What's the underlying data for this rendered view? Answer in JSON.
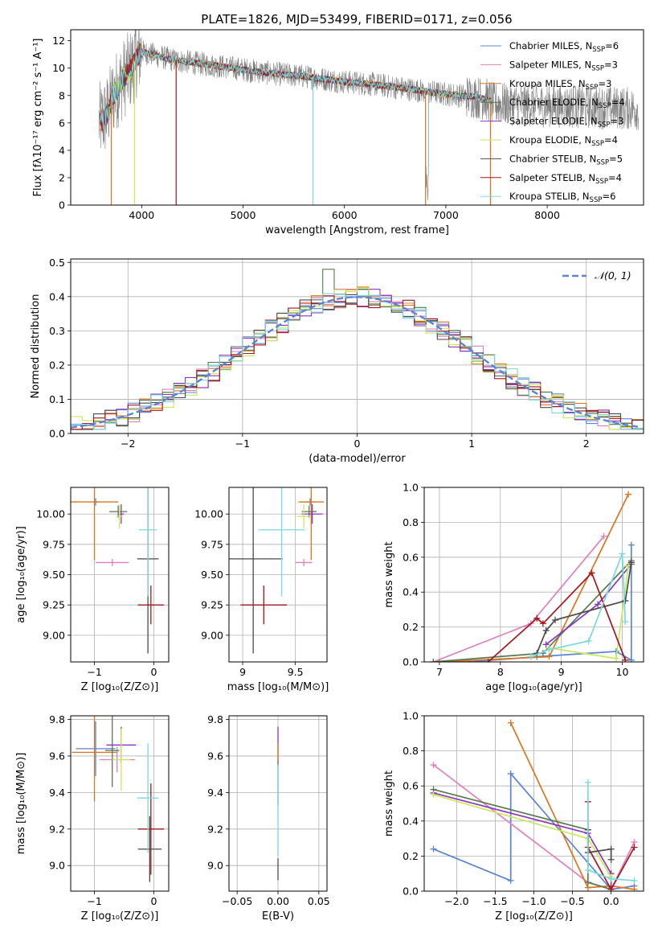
{
  "figure": {
    "title": "PLATE=1826, MJD=53499, FIBERID=0171, z=0.056"
  },
  "palette": {
    "Chabrier MILES": "#5b84d4",
    "Salpeter MILES": "#e07fbe",
    "Kroupa MILES": "#e0731e",
    "Chabrier ELODIE": "#567a4e",
    "Salpeter ELODIE": "#8d34c0",
    "Kroupa ELODIE": "#c9e95a",
    "Chabrier STELIB": "#4a4a4a",
    "Salpeter STELIB": "#a8151b",
    "Kroupa STELIB": "#7ad9de",
    "data": "#808080",
    "normal": "#5b84d4"
  },
  "chart_data": [
    {
      "id": "spectrum",
      "type": "line",
      "xlabel": "wavelength [Angstrom, rest frame]",
      "ylabel": "Flux [fλ10⁻¹⁷ erg cm⁻² s⁻¹ A⁻¹]",
      "xlim": [
        3300,
        8950
      ],
      "ylim": [
        0,
        12.8
      ],
      "xticks": [
        4000,
        5000,
        6000,
        7000,
        8000
      ],
      "yticks": [
        0,
        2,
        4,
        6,
        8,
        10,
        12
      ],
      "grid": false,
      "legend_position": "top-right",
      "legend": [
        "Chabrier MILES, N_SSP=6",
        "Salpeter MILES, N_SSP=3",
        "Kroupa MILES, N_SSP=3",
        "Chabrier ELODIE, N_SSP=4",
        "Salpeter ELODIE, N_SSP=3",
        "Kroupa ELODIE, N_SSP=4",
        "Chabrier STELIB, N_SSP=5",
        "Salpeter STELIB, N_SSP=4",
        "Kroupa STELIB, N_SSP=6"
      ],
      "continuum": {
        "x": [
          3580,
          3650,
          3720,
          3800,
          3900,
          3950,
          4000,
          4100,
          4300,
          4500,
          4800,
          5000,
          5300,
          5600,
          6000,
          6300,
          6600,
          7000,
          7300,
          7450
        ],
        "y": [
          6.0,
          6.5,
          8.0,
          9.0,
          10.0,
          10.8,
          11.2,
          11.0,
          10.6,
          10.4,
          10.1,
          9.9,
          9.6,
          9.4,
          9.0,
          8.8,
          8.5,
          8.1,
          7.9,
          7.6
        ]
      }
    },
    {
      "id": "residuals",
      "type": "bar",
      "xlabel": "(data-model)/error",
      "ylabel": "Normed distribution",
      "xlim": [
        -2.5,
        2.5
      ],
      "ylim": [
        0,
        0.51
      ],
      "xticks": [
        -2,
        -1,
        0,
        1,
        2
      ],
      "yticks": [
        0.0,
        0.1,
        0.2,
        0.3,
        0.4,
        0.5
      ],
      "grid": true,
      "legend_position": "top-right",
      "legend": [
        "𝒩(0, 1)"
      ],
      "bin_width": 0.1,
      "peak_values": {
        "x": -0.2,
        "y": 0.48
      }
    },
    {
      "id": "age-vs-Z",
      "type": "scatter",
      "xlabel": "Z [log₁₀(Z/Z⊙)]",
      "ylabel": "age  [log₁₀(age/yr)]",
      "xlim": [
        -1.4,
        0.25
      ],
      "ylim": [
        8.78,
        10.22
      ],
      "xticks": [
        -1,
        0
      ],
      "yticks": [
        9.0,
        9.25,
        9.5,
        9.75,
        10.0
      ],
      "ytick_labels": [
        "9.00",
        "9.25",
        "9.50",
        "9.75",
        "10.00"
      ],
      "grid": true,
      "points": [
        {
          "model": "Chabrier MILES",
          "x": -0.98,
          "y": 10.1,
          "xerr": 0.05,
          "yerr": 0.03
        },
        {
          "model": "Salpeter MILES",
          "x": -0.7,
          "y": 9.6,
          "xerr": 0.28,
          "yerr": 0.03
        },
        {
          "model": "Kroupa MILES",
          "x": -1.0,
          "y": 10.1,
          "xerr": 0.4,
          "yerr": 0.48
        },
        {
          "model": "Chabrier ELODIE",
          "x": -0.6,
          "y": 10.02,
          "xerr": 0.15,
          "yerr": 0.05
        },
        {
          "model": "Salpeter ELODIE",
          "x": -0.55,
          "y": 10.0,
          "xerr": 0.05,
          "yerr": 0.08
        },
        {
          "model": "Kroupa ELODIE",
          "x": -0.58,
          "y": 9.98,
          "xerr": 0.06,
          "yerr": 0.1
        },
        {
          "model": "Chabrier STELIB",
          "x": -0.1,
          "y": 9.63,
          "xerr": 0.18,
          "yerr": 0.78
        },
        {
          "model": "Salpeter STELIB",
          "x": -0.05,
          "y": 9.25,
          "xerr": 0.22,
          "yerr": 0.16
        },
        {
          "model": "Kroupa STELIB",
          "x": -0.1,
          "y": 9.87,
          "xerr": 0.15,
          "yerr": 0.55
        }
      ]
    },
    {
      "id": "age-vs-mass",
      "type": "scatter",
      "xlabel": "mass [log₁₀(M/M⊙)]",
      "ylabel": "",
      "xlim": [
        8.87,
        9.8
      ],
      "ylim": [
        8.78,
        10.22
      ],
      "xticks": [
        9.0,
        9.5
      ],
      "yticks": [
        9.0,
        9.25,
        9.5,
        9.75,
        10.0
      ],
      "ytick_labels": [
        "9.00",
        "9.25",
        "9.50",
        "9.75",
        "10.00"
      ],
      "grid": true,
      "points": [
        {
          "model": "Chabrier MILES",
          "x": 9.64,
          "y": 10.1,
          "xerr": 0.05,
          "yerr": 0.03
        },
        {
          "model": "Salpeter MILES",
          "x": 9.58,
          "y": 9.6,
          "xerr": 0.08,
          "yerr": 0.03
        },
        {
          "model": "Kroupa MILES",
          "x": 9.65,
          "y": 10.1,
          "xerr": 0.12,
          "yerr": 0.48
        },
        {
          "model": "Chabrier ELODIE",
          "x": 9.63,
          "y": 10.02,
          "xerr": 0.07,
          "yerr": 0.05
        },
        {
          "model": "Salpeter ELODIE",
          "x": 9.66,
          "y": 10.0,
          "xerr": 0.1,
          "yerr": 0.08
        },
        {
          "model": "Kroupa ELODIE",
          "x": 9.58,
          "y": 9.98,
          "xerr": 0.06,
          "yerr": 0.1
        },
        {
          "model": "Chabrier STELIB",
          "x": 9.1,
          "y": 9.63,
          "xerr": 0.28,
          "yerr": 0.78
        },
        {
          "model": "Salpeter STELIB",
          "x": 9.2,
          "y": 9.25,
          "xerr": 0.22,
          "yerr": 0.16
        },
        {
          "model": "Kroupa STELIB",
          "x": 9.37,
          "y": 9.87,
          "xerr": 0.22,
          "yerr": 0.55
        }
      ]
    },
    {
      "id": "weight-vs-age",
      "type": "line",
      "xlabel": "age  [log₁₀(age/yr)]",
      "ylabel": "mass weight",
      "xlim": [
        6.75,
        10.35
      ],
      "ylim": [
        0,
        1
      ],
      "xticks": [
        7,
        8,
        9,
        10
      ],
      "yticks": [
        0.0,
        0.2,
        0.4,
        0.6,
        0.8,
        1.0
      ],
      "grid": true,
      "series": [
        {
          "name": "Chabrier MILES",
          "x": [
            6.9,
            7.5,
            8.6,
            9.9,
            10.15,
            10.15
          ],
          "y": [
            0.0,
            0.0,
            0.03,
            0.06,
            0.01,
            0.67
          ]
        },
        {
          "name": "Salpeter MILES",
          "x": [
            6.9,
            8.5,
            9.7
          ],
          "y": [
            0.0,
            0.22,
            0.72
          ]
        },
        {
          "name": "Kroupa MILES",
          "x": [
            7.0,
            8.8,
            10.1
          ],
          "y": [
            0.0,
            0.03,
            0.96
          ]
        },
        {
          "name": "Chabrier ELODIE",
          "x": [
            6.9,
            8.7,
            10.15
          ],
          "y": [
            0.0,
            0.05,
            0.58
          ]
        },
        {
          "name": "Salpeter ELODIE",
          "x": [
            8.75,
            9.6,
            10.15
          ],
          "y": [
            0.1,
            0.33,
            0.56
          ]
        },
        {
          "name": "Kroupa ELODIE",
          "x": [
            8.8,
            9.9,
            10.1
          ],
          "y": [
            0.08,
            0.02,
            0.55
          ]
        },
        {
          "name": "Chabrier STELIB",
          "x": [
            8.6,
            8.75,
            8.9,
            10.05,
            10.15
          ],
          "y": [
            0.05,
            0.18,
            0.24,
            0.35,
            0.57
          ]
        },
        {
          "name": "Salpeter STELIB",
          "x": [
            7.8,
            8.6,
            8.7,
            9.5,
            10.05
          ],
          "y": [
            0.0,
            0.25,
            0.22,
            0.51,
            0.01
          ]
        },
        {
          "name": "Kroupa STELIB",
          "x": [
            8.5,
            8.8,
            9.45,
            10.0,
            10.05
          ],
          "y": [
            0.03,
            0.07,
            0.12,
            0.62,
            0.23
          ]
        }
      ]
    },
    {
      "id": "mass-vs-Z",
      "type": "scatter",
      "xlabel": "Z [log₁₀(Z/Z⊙)]",
      "ylabel": "mass [log₁₀(M/M⊙)]",
      "xlim": [
        -1.4,
        0.25
      ],
      "ylim": [
        8.86,
        9.82
      ],
      "xticks": [
        -1,
        0
      ],
      "yticks": [
        9.0,
        9.2,
        9.4,
        9.6,
        9.8
      ],
      "ytick_labels": [
        "9.0",
        "9.2",
        "9.4",
        "9.6",
        "9.8"
      ],
      "grid": true,
      "points": [
        {
          "model": "Chabrier MILES",
          "x": -0.98,
          "y": 9.64,
          "xerr": 0.33,
          "yerr": 0.15
        },
        {
          "model": "Salpeter MILES",
          "x": -0.62,
          "y": 9.58,
          "xerr": 0.3,
          "yerr": 0.07
        },
        {
          "model": "Kroupa MILES",
          "x": -1.0,
          "y": 9.62,
          "xerr": 0.38,
          "yerr": 0.27
        },
        {
          "model": "Chabrier ELODIE",
          "x": -0.7,
          "y": 9.63,
          "xerr": 0.12,
          "yerr": 0.2
        },
        {
          "model": "Salpeter ELODIE",
          "x": -0.55,
          "y": 9.66,
          "xerr": 0.25,
          "yerr": 0.1
        },
        {
          "model": "Kroupa ELODIE",
          "x": -0.55,
          "y": 9.58,
          "xerr": 0.15,
          "yerr": 0.17
        },
        {
          "model": "Chabrier STELIB",
          "x": -0.07,
          "y": 9.09,
          "xerr": 0.2,
          "yerr": 0.18
        },
        {
          "model": "Salpeter STELIB",
          "x": -0.05,
          "y": 9.2,
          "xerr": 0.22,
          "yerr": 0.25
        },
        {
          "model": "Kroupa STELIB",
          "x": -0.1,
          "y": 9.37,
          "xerr": 0.18,
          "yerr": 0.3
        }
      ]
    },
    {
      "id": "mass-vs-ebv",
      "type": "scatter",
      "xlabel": "E(B-V)",
      "ylabel": "",
      "xlim": [
        -0.06,
        0.06
      ],
      "ylim": [
        8.86,
        9.82
      ],
      "xticks": [
        -0.05,
        0.0,
        0.05
      ],
      "xtick_labels": [
        "−0.05",
        "0.00",
        "0.05"
      ],
      "yticks": [
        9.0,
        9.2,
        9.4,
        9.6,
        9.8
      ],
      "ytick_labels": [
        "9.0",
        "9.2",
        "9.4",
        "9.6",
        "9.8"
      ],
      "grid": true,
      "points": [
        {
          "model": "Salpeter ELODIE",
          "x": 0.0,
          "y": 9.66,
          "xerr": 0.0,
          "yerr": 0.1
        },
        {
          "model": "Kroupa MILES",
          "x": 0.0,
          "y": 9.62,
          "xerr": 0.0,
          "yerr": 0.05
        },
        {
          "model": "Chabrier ELODIE",
          "x": 0.0,
          "y": 9.45,
          "xerr": 0.0,
          "yerr": 0.12
        },
        {
          "model": "Kroupa STELIB",
          "x": 0.0,
          "y": 9.3,
          "xerr": 0.0,
          "yerr": 0.25
        },
        {
          "model": "Chabrier STELIB",
          "x": 0.0,
          "y": 8.98,
          "xerr": 0.0,
          "yerr": 0.06
        }
      ]
    },
    {
      "id": "weight-vs-Z",
      "type": "line",
      "xlabel": "Z [log₁₀(Z/Z⊙)]",
      "ylabel": "mass weight",
      "xlim": [
        -2.42,
        0.42
      ],
      "ylim": [
        0,
        1
      ],
      "xticks": [
        -2.0,
        -1.5,
        -1.0,
        -0.5,
        0.0
      ],
      "xtick_labels": [
        "−2.0",
        "−1.5",
        "−1.0",
        "−0.5",
        "0.0"
      ],
      "yticks": [
        0.0,
        0.2,
        0.4,
        0.6,
        0.8,
        1.0
      ],
      "grid": true,
      "series": [
        {
          "name": "Chabrier MILES",
          "x": [
            -2.3,
            -1.3,
            -1.3,
            0.0,
            0.3
          ],
          "y": [
            0.24,
            0.06,
            0.67,
            0.01,
            0.03
          ]
        },
        {
          "name": "Salpeter MILES",
          "x": [
            -2.3,
            -0.3,
            0.0,
            0.3
          ],
          "y": [
            0.72,
            0.05,
            0.01,
            0.28
          ]
        },
        {
          "name": "Kroupa MILES",
          "x": [
            -1.3,
            -0.3,
            0.0,
            0.3
          ],
          "y": [
            0.96,
            0.02,
            0.03,
            0.01
          ]
        },
        {
          "name": "Chabrier ELODIE",
          "x": [
            -2.3,
            -0.3,
            -0.3,
            0.0
          ],
          "y": [
            0.58,
            0.35,
            0.05,
            0.01
          ]
        },
        {
          "name": "Salpeter ELODIE",
          "x": [
            -2.3,
            -0.3,
            0.0,
            0.0
          ],
          "y": [
            0.56,
            0.33,
            0.1,
            0.01
          ]
        },
        {
          "name": "Kroupa ELODIE",
          "x": [
            -2.3,
            -0.3,
            0.0
          ],
          "y": [
            0.55,
            0.3,
            0.08
          ]
        },
        {
          "name": "Chabrier STELIB",
          "x": [
            -0.3,
            -0.3,
            0.0,
            0.0
          ],
          "y": [
            0.35,
            0.22,
            0.24,
            0.18
          ]
        },
        {
          "name": "Salpeter STELIB",
          "x": [
            -0.3,
            -0.3,
            0.0,
            0.3
          ],
          "y": [
            0.51,
            0.25,
            0.01,
            0.25
          ]
        },
        {
          "name": "Kroupa STELIB",
          "x": [
            -0.3,
            -0.3,
            0.0,
            0.3
          ],
          "y": [
            0.62,
            0.12,
            0.07,
            0.06
          ]
        }
      ]
    }
  ]
}
